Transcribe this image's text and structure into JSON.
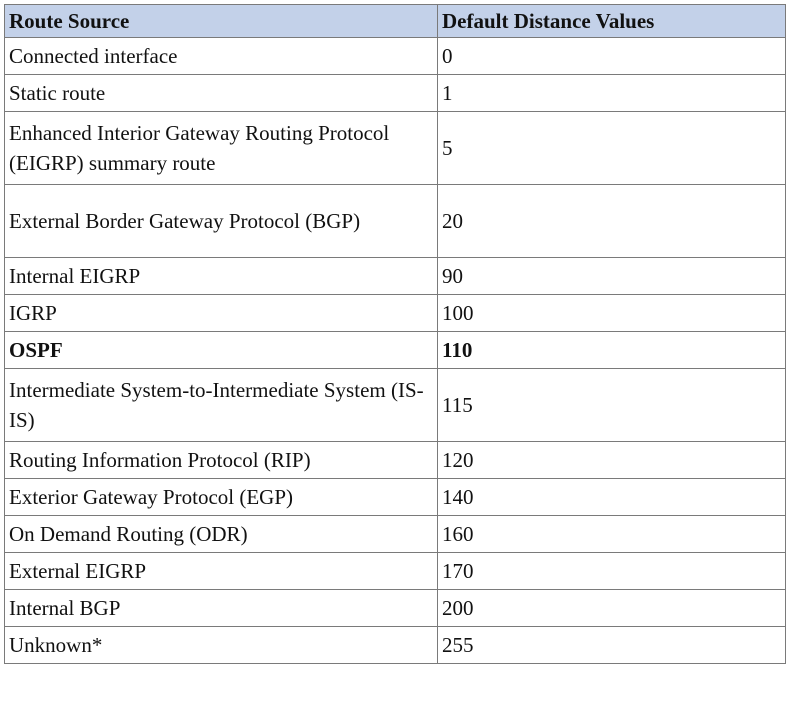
{
  "table": {
    "headers": [
      "Route Source",
      "Default Distance Values"
    ],
    "rows": [
      {
        "source": "Connected interface",
        "value": "0"
      },
      {
        "source": "Static route",
        "value": "1"
      },
      {
        "source": "Enhanced Interior Gateway Routing Protocol (EIGRP) summary route",
        "value": "5"
      },
      {
        "source": "External Border Gateway Protocol (BGP)",
        "value": "20"
      },
      {
        "source": "Internal EIGRP",
        "value": "90"
      },
      {
        "source": "IGRP",
        "value": "100"
      },
      {
        "source": "OSPF",
        "value": "110"
      },
      {
        "source": "Intermediate System-to-Intermediate System (IS-IS)",
        "value": "115"
      },
      {
        "source": "Routing Information Protocol (RIP)",
        "value": "120"
      },
      {
        "source": "Exterior Gateway Protocol (EGP)",
        "value": "140"
      },
      {
        "source": "On Demand Routing (ODR)",
        "value": "160"
      },
      {
        "source": "External EIGRP",
        "value": "170"
      },
      {
        "source": "Internal BGP",
        "value": "200"
      },
      {
        "source": "Unknown*",
        "value": "255"
      }
    ]
  }
}
